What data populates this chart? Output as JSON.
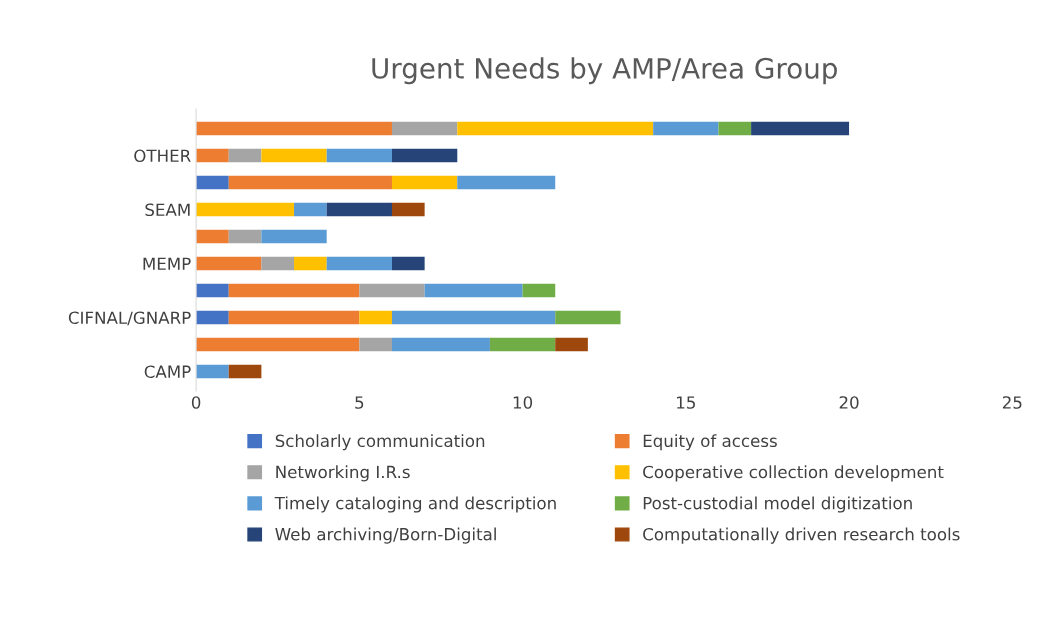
{
  "chart_data": {
    "type": "bar",
    "title": "Urgent Needs by AMP/Area Group",
    "orientation": "horizontal",
    "stacked": true,
    "categories": [
      null,
      "OTHER",
      null,
      "SEAM",
      null,
      "MEMP",
      null,
      "CIFNAL/GNARP",
      null,
      "CAMP"
    ],
    "series": [
      {
        "name": "Scholarly communication",
        "color": "#4472c4",
        "values": [
          null,
          null,
          1,
          null,
          null,
          null,
          1,
          1,
          null,
          null
        ]
      },
      {
        "name": "Equity of access",
        "color": "#ed7d31",
        "values": [
          6,
          1,
          5,
          null,
          1,
          2,
          4,
          4,
          5,
          null
        ]
      },
      {
        "name": "Networking I.R.s",
        "color": "#a5a5a5",
        "values": [
          2,
          1,
          null,
          null,
          1,
          1,
          2,
          null,
          1,
          null
        ]
      },
      {
        "name": "Cooperative collection development",
        "color": "#ffc000",
        "values": [
          6,
          2,
          2,
          3,
          null,
          1,
          null,
          1,
          null,
          null
        ]
      },
      {
        "name": "Timely cataloging and description",
        "color": "#5b9bd5",
        "values": [
          2,
          2,
          3,
          1,
          2,
          2,
          3,
          5,
          3,
          1
        ]
      },
      {
        "name": "Post-custodial model digitization",
        "color": "#70ad47",
        "values": [
          1,
          null,
          null,
          null,
          null,
          null,
          1,
          2,
          2,
          null
        ]
      },
      {
        "name": "Web archiving/Born-Digital",
        "color": "#264478",
        "values": [
          3,
          2,
          null,
          2,
          null,
          1,
          null,
          null,
          null,
          null
        ]
      },
      {
        "name": "Computationally driven research tools",
        "color": "#9e480e",
        "values": [
          null,
          null,
          null,
          1,
          null,
          null,
          null,
          null,
          1,
          1
        ]
      }
    ],
    "xlim": [
      0,
      25
    ],
    "xticks": [
      0,
      5,
      10,
      15,
      20,
      25
    ],
    "grid": false,
    "legend": "bottom"
  }
}
